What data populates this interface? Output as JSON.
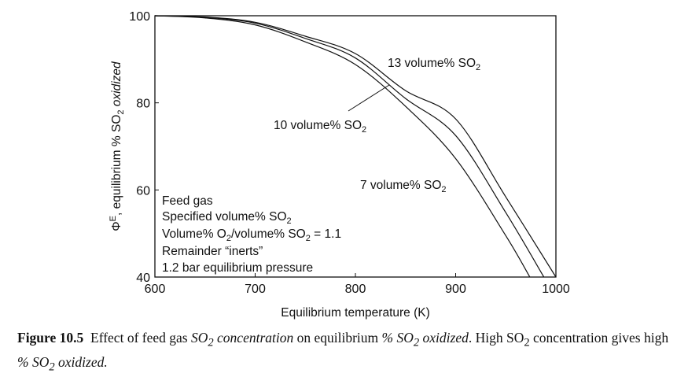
{
  "chart_data": {
    "type": "line",
    "xlabel": "Equilibrium temperature (K)",
    "ylabel": {
      "phi": "Φ",
      "sup": "E",
      "mid": ", equilibrium % SO",
      "sub": "2",
      "end": " oxidized"
    },
    "xlim": [
      600,
      1000
    ],
    "ylim": [
      40,
      100
    ],
    "xticks": [
      "600",
      "700",
      "800",
      "900",
      "1000"
    ],
    "yticks": [
      "40",
      "60",
      "80",
      "100"
    ],
    "grid": false,
    "series": [
      {
        "name": "13 volume% SO2",
        "label_main": "13 volume% SO",
        "label_sub": "2",
        "x": [
          600,
          650,
          700,
          750,
          800,
          850,
          900,
          950,
          1000
        ],
        "y": [
          100,
          99.7,
          98.5,
          95.3,
          91.3,
          82.8,
          76.3,
          58.4,
          40
        ]
      },
      {
        "name": "10 volume% SO2",
        "label_main": "10 volume% SO",
        "label_sub": "2",
        "x": [
          600,
          650,
          700,
          750,
          800,
          850,
          900,
          950,
          988
        ],
        "y": [
          100,
          99.6,
          98.3,
          94.8,
          90.3,
          81.0,
          72.5,
          54.8,
          40
        ]
      },
      {
        "name": "7 volume% SO2",
        "label_main": "7 volume% SO",
        "label_sub": "2",
        "x": [
          600,
          650,
          700,
          750,
          800,
          850,
          900,
          950,
          974
        ],
        "y": [
          100,
          99.5,
          97.9,
          94.0,
          88.8,
          79.2,
          67.2,
          49.5,
          40
        ]
      }
    ],
    "annotation": {
      "line1": "Feed gas",
      "line2_main": "Specified volume% SO",
      "line2_sub": "2",
      "line3_a": "Volume% O",
      "line3_sub1": "2",
      "line3_b": "/volume% SO",
      "line3_sub2": "2",
      "line3_c": " = 1.1",
      "line4": "Remainder “inerts”",
      "line5": "1.2 bar equilibrium pressure"
    }
  },
  "caption": {
    "label": "Figure 10.5",
    "t1": "  Effect of feed gas ",
    "i1": "SO",
    "i1sub": "2",
    "i1b": " concentration",
    "t2": " on equilibrium ",
    "i2": "% SO",
    "i2sub": "2",
    "i2b": " oxidized",
    "t3": ". High SO",
    "t3sub": "2",
    "t4": " concentration gives high ",
    "i3": "% SO",
    "i3sub": "2",
    "i3b": " oxidized."
  }
}
